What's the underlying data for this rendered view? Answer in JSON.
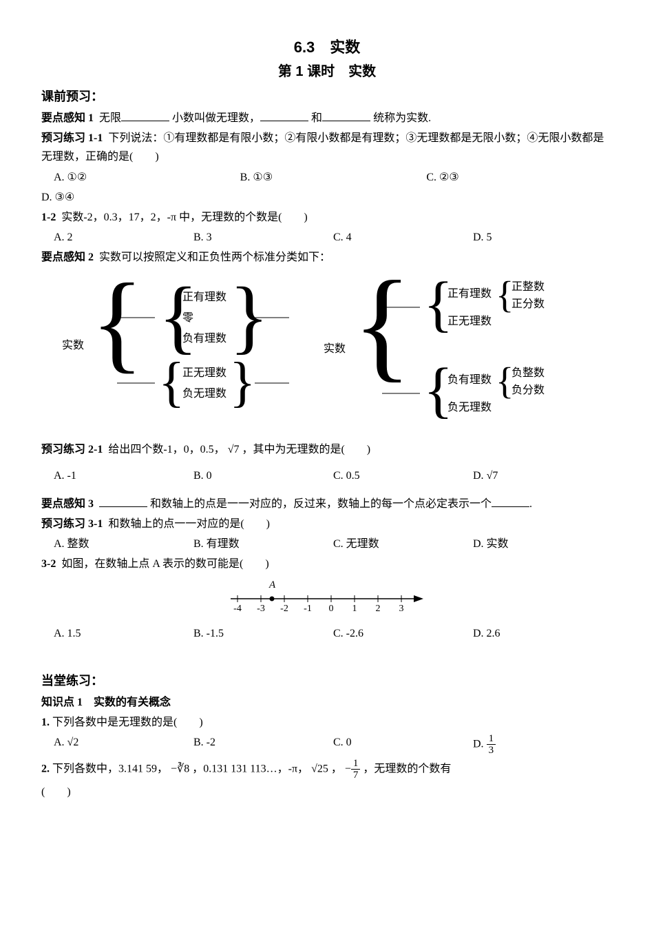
{
  "titles": {
    "main": "6.3　实数",
    "sub": "第 1 课时　实数"
  },
  "sections": {
    "preclass": "课前预习：",
    "inclass": "当堂练习：",
    "kp1": "知识点 1　实数的有关概念"
  },
  "yd1": {
    "label": "要点感知 1",
    "t1": "无限",
    "t2": "小数叫做无理数，",
    "t3": "和",
    "t4": "统称为实数."
  },
  "p11": {
    "label": "预习练习 1-1",
    "body": "下列说法：①有理数都是有限小数；②有限小数都是有理数；③无理数都是无限小数；④无限小数都是无理数，正确的是(　　)",
    "A": "A. ①②",
    "B": "B. ①③",
    "C": "C. ②③",
    "D": "D. ③④"
  },
  "p12": {
    "label": "1-2",
    "body": "实数-2，0.3，17，2，-π 中，无理数的个数是(　　)",
    "A": "A. 2",
    "B": "B. 3",
    "C": "C. 4",
    "D": "D. 5"
  },
  "yd2": {
    "label": "要点感知 2",
    "body": "实数可以按照定义和正负性两个标准分类如下："
  },
  "tree": {
    "left": {
      "root": "实数",
      "g1": {
        "a": "正有理数",
        "b": "零",
        "c": "负有理数"
      },
      "g2": {
        "a": "正无理数",
        "b": "负无理数"
      }
    },
    "right": {
      "root": "实数",
      "pos": {
        "head": "正有理数",
        "a": "正整数",
        "b": "正分数",
        "tail": "正无理数"
      },
      "neg": {
        "head": "负有理数",
        "a": "负整数",
        "b": "负分数",
        "tail": "负无理数"
      }
    }
  },
  "p21": {
    "label": "预习练习 2-1",
    "body_pre": "给出四个数-1，0，0.5，",
    "body_post": "，其中为无理数的是(　　)",
    "sqrt7": "√7",
    "A": "A. -1",
    "B": "B. 0",
    "C": "C. 0.5",
    "Dpre": "D. ",
    "Dv": "√7"
  },
  "yd3": {
    "label": "要点感知 3",
    "t1": "和数轴上的点是一一对应的，反过来，数轴上的每一个点必定表示一个",
    "t2": "."
  },
  "p31": {
    "label": "预习练习 3-1",
    "body": "和数轴上的点一一对应的是(　　)",
    "A": "A. 整数",
    "B": "B. 有理数",
    "C": "C. 无理数",
    "D": "D. 实数"
  },
  "p32": {
    "label": "3-2",
    "body": "如图，在数轴上点 A 表示的数可能是(　　)",
    "pointLabel": "A",
    "ticks": [
      "-4",
      "-3",
      "-2",
      "-1",
      "0",
      "1",
      "2",
      "3"
    ],
    "A": "A. 1.5",
    "B": "B. -1.5",
    "C": "C. -2.6",
    "D": "D. 2.6"
  },
  "q1": {
    "label": "1.",
    "body": "下列各数中是无理数的是(　　)",
    "A": "A. √2",
    "B": "B. -2",
    "C": "C. 0",
    "Dpre": "D. ",
    "Dnum": "1",
    "Dden": "3"
  },
  "q2": {
    "label": "2.",
    "pre": "下列各数中，3.141 59，",
    "cuberoot": "−∛8",
    "mid1": "，0.131 131 113…，-π，",
    "sqrt25": "√25",
    "mid2": "，",
    "fracPre": "−",
    "fnum": "1",
    "fden": "7",
    "post": "，无理数的个数有",
    "paren": "(　　)"
  }
}
